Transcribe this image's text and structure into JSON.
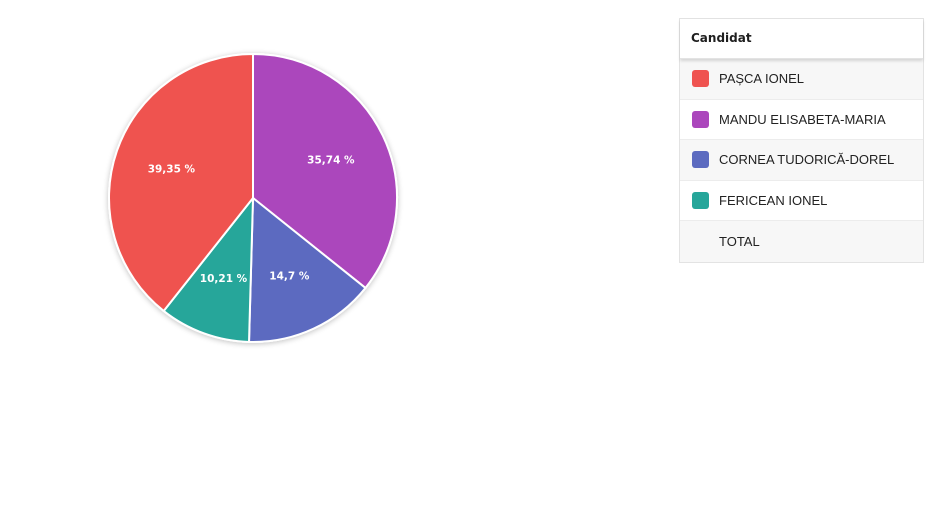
{
  "chart_data": {
    "type": "pie",
    "slices": [
      {
        "name": "MANDU ELISABETA-MARIA",
        "value": 35.74,
        "label": "35,74 %",
        "color": "#ab47bc"
      },
      {
        "name": "CORNEA TUDORICĂ-DOREL",
        "value": 14.7,
        "label": "14,7 %",
        "color": "#5c6bc0"
      },
      {
        "name": "FERICEAN IONEL",
        "value": 10.21,
        "label": "10,21 %",
        "color": "#26a69a"
      },
      {
        "name": "PAȘCA IONEL",
        "value": 39.35,
        "label": "39,35 %",
        "color": "#ef5350"
      }
    ]
  },
  "legend": {
    "header": "Candidat",
    "items": [
      {
        "label": "PAȘCA IONEL",
        "color": "#ef5350"
      },
      {
        "label": "MANDU ELISABETA-MARIA",
        "color": "#ab47bc"
      },
      {
        "label": "CORNEA TUDORICĂ-DOREL",
        "color": "#5c6bc0"
      },
      {
        "label": "FERICEAN IONEL",
        "color": "#26a69a"
      }
    ],
    "total_label": "TOTAL"
  }
}
